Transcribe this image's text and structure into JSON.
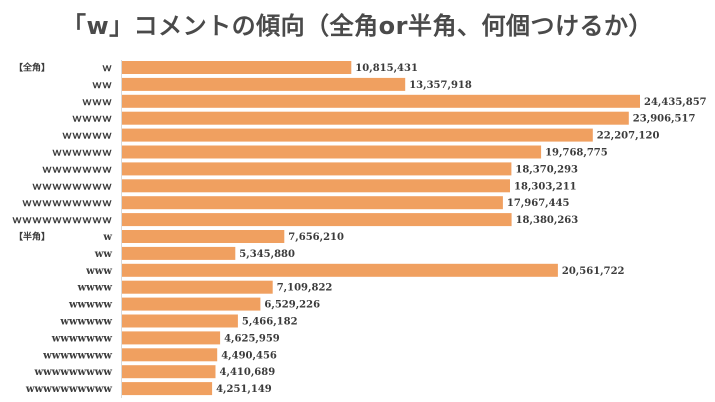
{
  "title": "「w」コメントの傾向（全角or半角、何個つけるか）",
  "chart_data": {
    "type": "bar",
    "orientation": "horizontal",
    "title": "「w」コメントの傾向（全角or半角、何個つけるか）",
    "groups": [
      {
        "label": "【全角】",
        "categories": [
          "ｗ",
          "ｗｗ",
          "ｗｗｗ",
          "ｗｗｗｗ",
          "ｗｗｗｗｗ",
          "ｗｗｗｗｗｗ",
          "ｗｗｗｗｗｗｗ",
          "ｗｗｗｗｗｗｗｗ",
          "ｗｗｗｗｗｗｗｗｗ",
          "ｗｗｗｗｗｗｗｗｗｗ"
        ],
        "values": [
          10815431,
          13357918,
          24435857,
          23906517,
          22207120,
          19768775,
          18370293,
          18303211,
          17967445,
          18380263
        ],
        "value_labels": [
          "10,815,431",
          "13,357,918",
          "24,435,857",
          "23,906,517",
          "22,207,120",
          "19,768,775",
          "18,370,293",
          "18,303,211",
          "17,967,445",
          "18,380,263"
        ]
      },
      {
        "label": "【半角】",
        "categories": [
          "w",
          "ww",
          "www",
          "wwww",
          "wwwww",
          "wwwwww",
          "wwwwwww",
          "wwwwwwww",
          "wwwwwwwww",
          "wwwwwwwwww"
        ],
        "values": [
          7656210,
          5345880,
          20561722,
          7109822,
          6529226,
          5466182,
          4625959,
          4490456,
          4410689,
          4251149
        ],
        "value_labels": [
          "7,656,210",
          "5,345,880",
          "20,561,722",
          "7,109,822",
          "6,529,226",
          "5,466,182",
          "4,625,959",
          "4,490,456",
          "4,410,689",
          "4,251,149"
        ]
      }
    ],
    "xlim": [
      0,
      24435857
    ],
    "grid": false,
    "legend": "none",
    "bar_color": "#f0a060"
  }
}
